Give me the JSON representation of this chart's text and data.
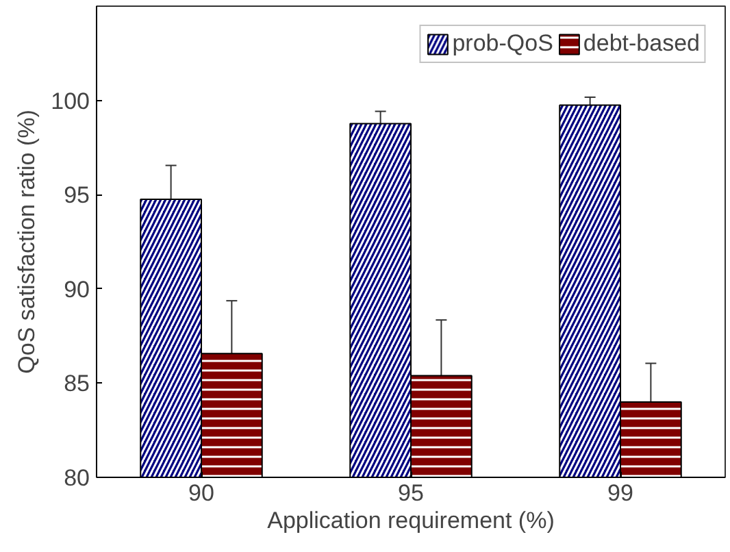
{
  "chart_data": {
    "type": "bar",
    "xlabel": "Application requirement (%)",
    "ylabel": "QoS satisfaction ratio (%)",
    "categories": [
      "90",
      "95",
      "99"
    ],
    "series": [
      {
        "name": "prob-QoS",
        "color": "#000080",
        "values": [
          94.75,
          98.77,
          99.75
        ],
        "errors": [
          1.8,
          0.65,
          0.42
        ]
      },
      {
        "name": "debt-based",
        "color": "#800000",
        "values": [
          86.57,
          85.4,
          84.0
        ],
        "errors": [
          2.8,
          2.95,
          2.05
        ]
      }
    ],
    "ylim": [
      80,
      105
    ],
    "yticks": [
      80,
      85,
      90,
      95,
      100
    ],
    "grid": false,
    "legend": "top right"
  }
}
